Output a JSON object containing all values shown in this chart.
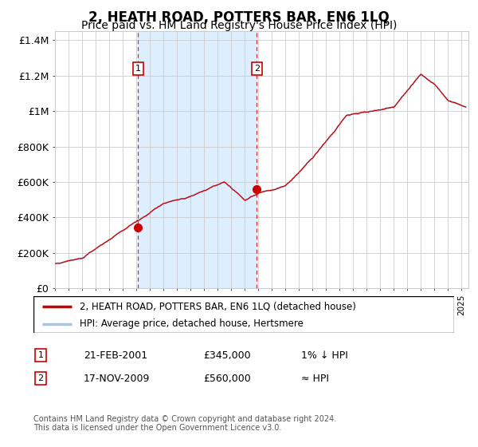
{
  "title": "2, HEATH ROAD, POTTERS BAR, EN6 1LQ",
  "subtitle": "Price paid vs. HM Land Registry's House Price Index (HPI)",
  "title_fontsize": 12,
  "subtitle_fontsize": 10,
  "legend_line1": "2, HEATH ROAD, POTTERS BAR, EN6 1LQ (detached house)",
  "legend_line2": "HPI: Average price, detached house, Hertsmere",
  "annotation1_date": "21-FEB-2001",
  "annotation1_price": "£345,000",
  "annotation1_hpi": "1% ↓ HPI",
  "annotation2_date": "17-NOV-2009",
  "annotation2_price": "£560,000",
  "annotation2_hpi": "≈ HPI",
  "footer": "Contains HM Land Registry data © Crown copyright and database right 2024.\nThis data is licensed under the Open Government Licence v3.0.",
  "sale1_x": 2001.13,
  "sale1_y": 345000,
  "sale2_x": 2009.88,
  "sale2_y": 560000,
  "shade_x1": 2001.13,
  "shade_x2": 2009.88,
  "ylim": [
    0,
    1450000
  ],
  "xlim_start": 1995,
  "xlim_end": 2025.5,
  "yticks": [
    0,
    200000,
    400000,
    600000,
    800000,
    1000000,
    1200000,
    1400000
  ],
  "ytick_labels": [
    "£0",
    "£200K",
    "£400K",
    "£600K",
    "£800K",
    "£1M",
    "£1.2M",
    "£1.4M"
  ],
  "line_color_hpi": "#a8c4e0",
  "line_color_price": "#cc0000",
  "shade_color": "#ddeeff",
  "dot_color": "#cc0000",
  "background_color": "#ffffff",
  "grid_color": "#cccccc"
}
